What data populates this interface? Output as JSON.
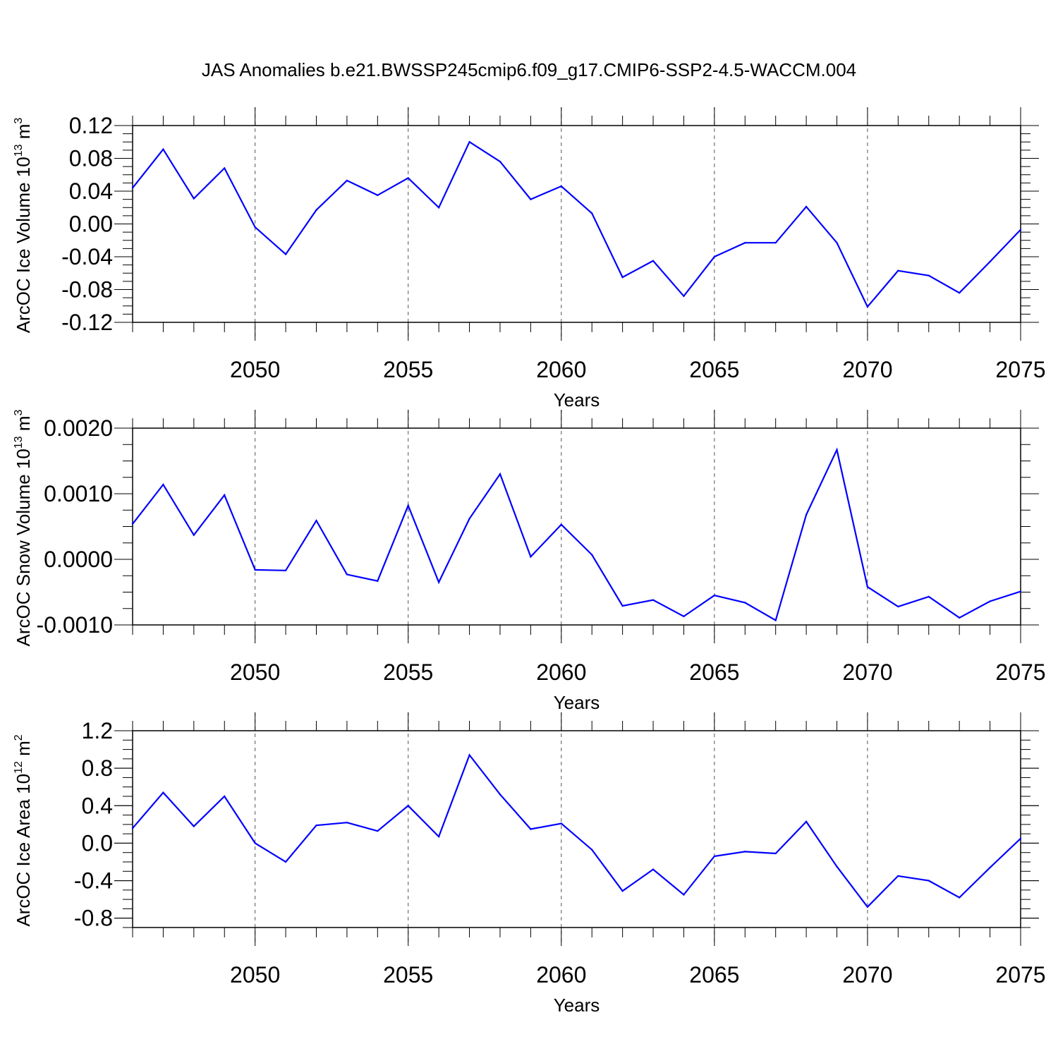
{
  "title": "JAS Anomalies b.e21.BWSSP245cmip6.f09_g17.CMIP6-SSP2-4.5-WACCM.004",
  "line_color": "#0000ff",
  "chart_data": [
    {
      "type": "line",
      "xlabel": "Years",
      "ylabel": "ArcOC Ice Volume",
      "ylabel_unit_base": "10",
      "ylabel_exp": "13",
      "ylabel_unit": "m",
      "ylabel_unit_exp": "3",
      "xlim": [
        2046,
        2075
      ],
      "ylim": [
        -0.12,
        0.12
      ],
      "yticks": [
        -0.12,
        -0.08,
        -0.04,
        0.0,
        0.04,
        0.08,
        0.12
      ],
      "ytick_labels": [
        "-0.12",
        "-0.08",
        "-0.04",
        "0.00",
        "0.04",
        "0.08",
        "0.12"
      ],
      "xticks": [
        2050,
        2055,
        2060,
        2065,
        2070,
        2075
      ],
      "xtick_labels": [
        "2050",
        "2055",
        "2060",
        "2065",
        "2070",
        "2075"
      ],
      "grid_x_dashed": [
        2050,
        2055,
        2060,
        2065,
        2070
      ],
      "x": [
        2046,
        2047,
        2048,
        2049,
        2050,
        2051,
        2052,
        2053,
        2054,
        2055,
        2056,
        2057,
        2058,
        2059,
        2060,
        2061,
        2062,
        2063,
        2064,
        2065,
        2066,
        2067,
        2068,
        2069,
        2070,
        2071,
        2072,
        2073,
        2074,
        2075
      ],
      "y": [
        0.044,
        0.091,
        0.031,
        0.068,
        -0.004,
        -0.037,
        0.017,
        0.053,
        0.035,
        0.056,
        0.02,
        0.1,
        0.076,
        0.03,
        0.046,
        0.013,
        -0.065,
        -0.045,
        -0.088,
        -0.04,
        -0.023,
        -0.023,
        0.021,
        -0.023,
        -0.101,
        -0.057,
        -0.063,
        -0.084,
        -0.046,
        -0.007
      ]
    },
    {
      "type": "line",
      "xlabel": "Years",
      "ylabel": "ArcOC Snow Volume",
      "ylabel_unit_base": "10",
      "ylabel_exp": "13",
      "ylabel_unit": "m",
      "ylabel_unit_exp": "3",
      "xlim": [
        2046,
        2075
      ],
      "ylim": [
        -0.001,
        0.002
      ],
      "yticks": [
        -0.001,
        0.0,
        0.001,
        0.002
      ],
      "ytick_labels": [
        "-0.0010",
        "0.0000",
        "0.0010",
        "0.0020"
      ],
      "xticks": [
        2050,
        2055,
        2060,
        2065,
        2070,
        2075
      ],
      "xtick_labels": [
        "2050",
        "2055",
        "2060",
        "2065",
        "2070",
        "2075"
      ],
      "grid_x_dashed": [
        2050,
        2055,
        2060,
        2065,
        2070
      ],
      "x": [
        2046,
        2047,
        2048,
        2049,
        2050,
        2051,
        2052,
        2053,
        2054,
        2055,
        2056,
        2057,
        2058,
        2059,
        2060,
        2061,
        2062,
        2063,
        2064,
        2065,
        2066,
        2067,
        2068,
        2069,
        2070,
        2071,
        2072,
        2073,
        2074,
        2075
      ],
      "y": [
        0.00054,
        0.00114,
        0.00037,
        0.00098,
        -0.00016,
        -0.00017,
        0.00059,
        -0.00023,
        -0.00033,
        0.00082,
        -0.00035,
        0.00062,
        0.0013,
        4e-05,
        0.00053,
        7e-05,
        -0.00071,
        -0.00062,
        -0.00087,
        -0.00055,
        -0.00066,
        -0.00093,
        0.00068,
        0.00167,
        -0.00042,
        -0.00072,
        -0.00057,
        -0.00089,
        -0.00064,
        -0.00049
      ]
    },
    {
      "type": "line",
      "xlabel": "Years",
      "ylabel": "ArcOC Ice Area",
      "ylabel_unit_base": "10",
      "ylabel_exp": "12",
      "ylabel_unit": "m",
      "ylabel_unit_exp": "2",
      "xlim": [
        2046,
        2075
      ],
      "ylim": [
        -0.9,
        1.2
      ],
      "yticks": [
        -0.8,
        -0.4,
        0.0,
        0.4,
        0.8,
        1.2
      ],
      "ytick_labels": [
        "-0.8",
        "-0.4",
        "0.0",
        "0.4",
        "0.8",
        "1.2"
      ],
      "xticks": [
        2050,
        2055,
        2060,
        2065,
        2070,
        2075
      ],
      "xtick_labels": [
        "2050",
        "2055",
        "2060",
        "2065",
        "2070",
        "2075"
      ],
      "grid_x_dashed": [
        2050,
        2055,
        2060,
        2065,
        2070
      ],
      "x": [
        2046,
        2047,
        2048,
        2049,
        2050,
        2051,
        2052,
        2053,
        2054,
        2055,
        2056,
        2057,
        2058,
        2059,
        2060,
        2061,
        2062,
        2063,
        2064,
        2065,
        2066,
        2067,
        2068,
        2069,
        2070,
        2071,
        2072,
        2073,
        2074,
        2075
      ],
      "y": [
        0.16,
        0.54,
        0.18,
        0.5,
        0.0,
        -0.2,
        0.19,
        0.22,
        0.13,
        0.4,
        0.07,
        0.94,
        0.52,
        0.15,
        0.21,
        -0.07,
        -0.51,
        -0.28,
        -0.55,
        -0.14,
        -0.09,
        -0.11,
        0.23,
        -0.25,
        -0.68,
        -0.35,
        -0.4,
        -0.58,
        -0.26,
        0.05
      ]
    }
  ]
}
